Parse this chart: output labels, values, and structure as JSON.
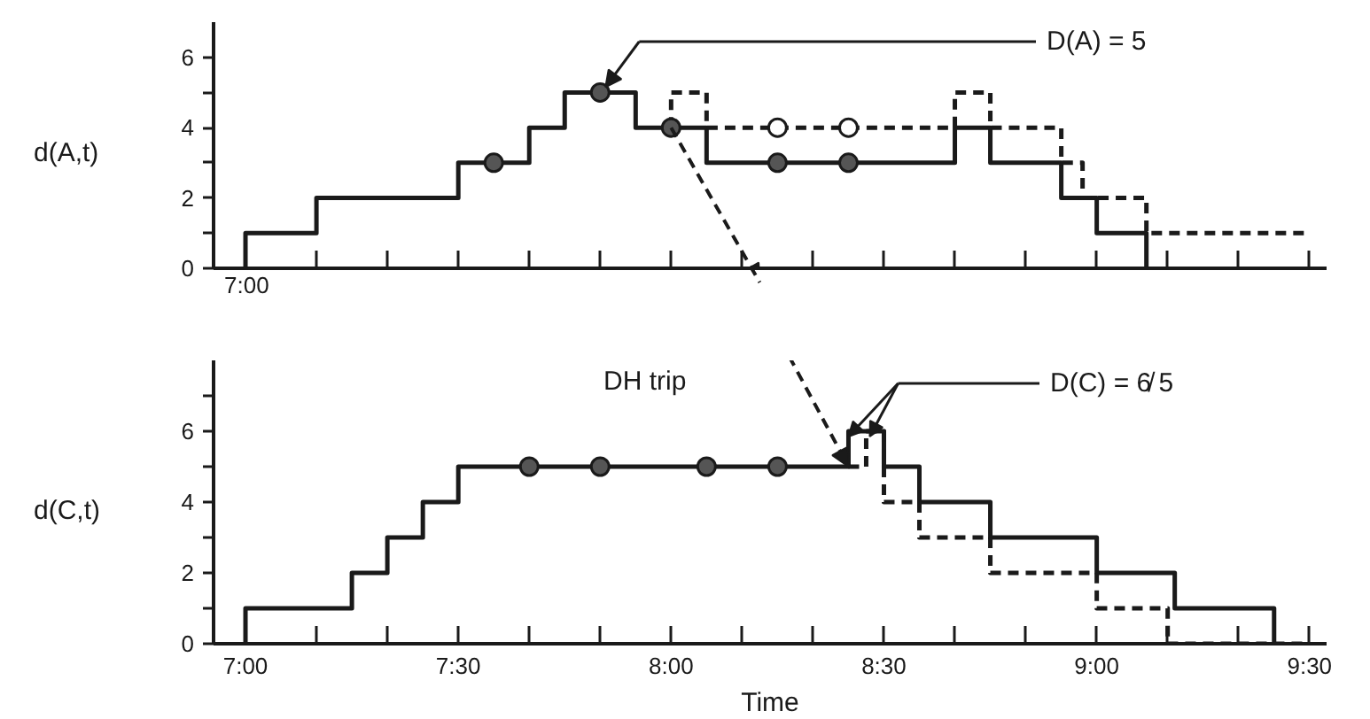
{
  "chart_data": [
    {
      "type": "step",
      "ylabel": "d(A,t)",
      "xlim": [
        6.925,
        9.54
      ],
      "ylim": [
        0,
        7
      ],
      "tick_labels": "y",
      "xticks": [
        {
          "value": 7.0,
          "label": null
        },
        {
          "value": 7.1667,
          "label": null
        },
        {
          "value": 7.3333,
          "label": null
        },
        {
          "value": 7.5,
          "label": null
        },
        {
          "value": 7.6667,
          "label": null
        },
        {
          "value": 7.8333,
          "label": null
        },
        {
          "value": 8.0,
          "label": null
        },
        {
          "value": 8.1667,
          "label": null
        },
        {
          "value": 8.3333,
          "label": null
        },
        {
          "value": 8.5,
          "label": null
        },
        {
          "value": 8.6667,
          "label": null
        },
        {
          "value": 8.8333,
          "label": null
        },
        {
          "value": 9.0,
          "label": null
        },
        {
          "value": 9.1667,
          "label": null
        },
        {
          "value": 9.3333,
          "label": null
        },
        {
          "value": 9.5,
          "label": null
        }
      ],
      "yticks": [
        0,
        {
          "value": 1,
          "label": null
        },
        2,
        {
          "value": 3,
          "label": null
        },
        4,
        {
          "value": 5,
          "label": null
        },
        6
      ],
      "series": [
        {
          "color": "#1a1a1a",
          "line_style": "solid",
          "x": [
            7.0,
            7.0,
            7.1667,
            7.5,
            7.6667,
            7.75,
            7.9167,
            8.0833,
            8.6667,
            8.75,
            8.9167,
            9.0,
            9.1167
          ],
          "values": [
            0,
            1,
            2,
            3,
            4,
            5,
            4,
            3,
            4,
            3,
            2,
            1,
            0
          ]
        },
        {
          "color": "#1a1a1a",
          "line_style": "dashed",
          "x": [
            8.0,
            8.0,
            8.0833,
            8.6667,
            8.75,
            8.9167,
            8.9667,
            9.1167,
            9.5
          ],
          "values": [
            4,
            5,
            4,
            5,
            4,
            3,
            2,
            1,
            1
          ]
        },
        {
          "type": "scatter",
          "marker": "circle",
          "color": "#555555",
          "x": [
            7.5833,
            7.8333,
            8.0,
            8.25,
            8.4167
          ],
          "values": [
            3,
            5,
            4,
            3,
            3
          ]
        },
        {
          "type": "scatter",
          "marker": "circle",
          "color": "#ffffff",
          "x": [
            8.25,
            8.4167
          ],
          "values": [
            4,
            4
          ]
        }
      ],
      "annotations": [
        "D(A) = 5",
        "7:00"
      ]
    },
    {
      "type": "step",
      "ylabel": "d(C,t)",
      "xlabel": "Time",
      "xlim": [
        6.925,
        9.54
      ],
      "ylim": [
        0,
        8
      ],
      "xticks": [
        {
          "value": 7.0,
          "label": "7:00"
        },
        {
          "value": 7.1667,
          "label": null
        },
        {
          "value": 7.3333,
          "label": null
        },
        {
          "value": 7.5,
          "label": "7:30"
        },
        {
          "value": 7.6667,
          "label": null
        },
        {
          "value": 7.8333,
          "label": null
        },
        {
          "value": 8.0,
          "label": "8:00"
        },
        {
          "value": 8.1667,
          "label": null
        },
        {
          "value": 8.3333,
          "label": null
        },
        {
          "value": 8.5,
          "label": "8:30"
        },
        {
          "value": 8.6667,
          "label": null
        },
        {
          "value": 8.8333,
          "label": null
        },
        {
          "value": 9.0,
          "label": "9:00"
        },
        {
          "value": 9.1667,
          "label": null
        },
        {
          "value": 9.3333,
          "label": null
        },
        {
          "value": 9.5,
          "label": "9:30"
        }
      ],
      "yticks": [
        0,
        {
          "value": 1,
          "label": null
        },
        2,
        {
          "value": 3,
          "label": null
        },
        4,
        {
          "value": 5,
          "label": null
        },
        6,
        {
          "value": 7,
          "label": null
        }
      ],
      "series": [
        {
          "color": "#1a1a1a",
          "line_style": "solid",
          "x": [
            7.0,
            7.0,
            7.25,
            7.3333,
            7.4167,
            7.5,
            8.4167,
            8.5,
            8.5833,
            8.75,
            9.0,
            9.1833,
            9.4167
          ],
          "values": [
            0,
            1,
            2,
            3,
            4,
            5,
            6,
            5,
            4,
            3,
            2,
            1,
            0
          ]
        },
        {
          "color": "#1a1a1a",
          "line_style": "dashed",
          "x": [
            8.4167,
            8.4583,
            8.5,
            8.5833,
            8.75,
            9.0,
            9.1667,
            9.5
          ],
          "values": [
            5,
            6,
            4,
            3,
            2,
            1,
            0,
            0
          ]
        },
        {
          "type": "scatter",
          "marker": "circle",
          "color": "#555555",
          "x": [
            7.6667,
            7.8333,
            8.0833,
            8.25
          ],
          "values": [
            5,
            5,
            5,
            5
          ]
        }
      ],
      "annotations": [
        "D(C) = 6̸ 5",
        "DH trip"
      ]
    }
  ]
}
